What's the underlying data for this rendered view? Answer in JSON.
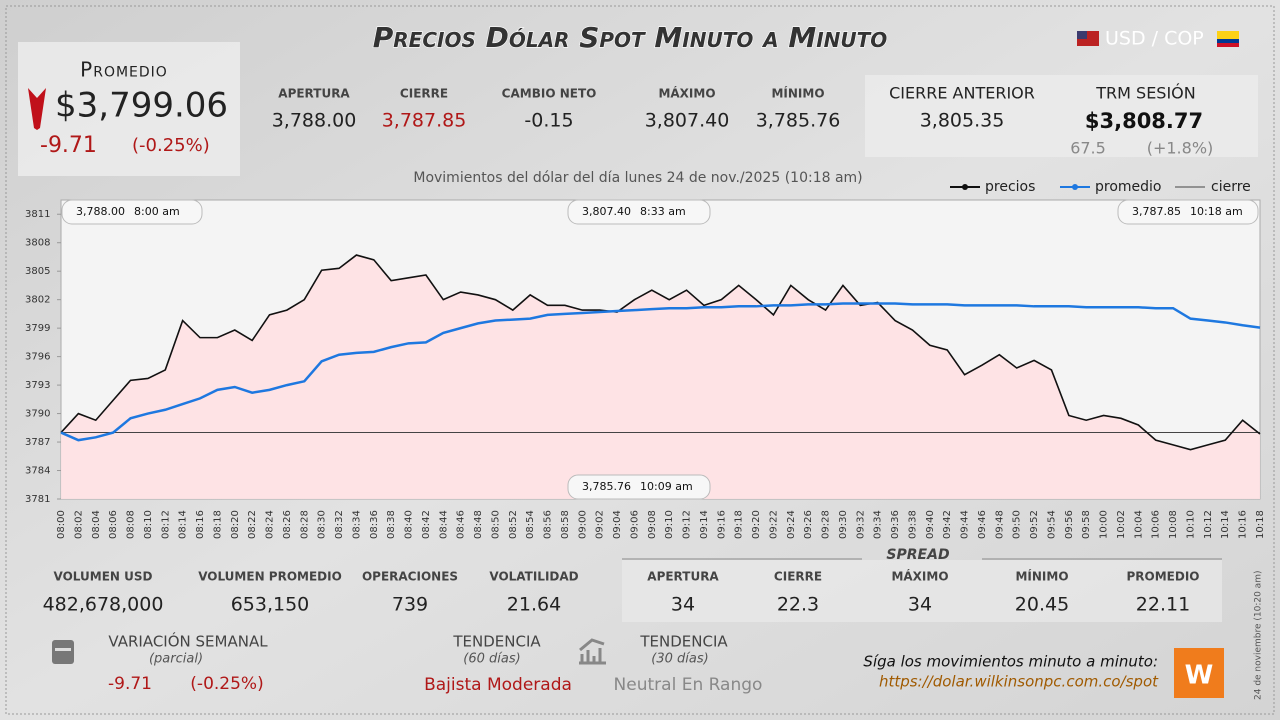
{
  "header": {
    "title": "Precios Dólar Spot Minuto a Minuto",
    "pair": "USD / COP"
  },
  "promedio": {
    "label": "Promedio",
    "value": "$3,799.06",
    "change": "-9.71",
    "change_pct": "(-0.25%)"
  },
  "stats": [
    {
      "label": "APERTURA",
      "value": "3,788.00"
    },
    {
      "label": "CIERRE",
      "value": "3,787.85"
    },
    {
      "label": "CAMBIO NETO",
      "value": "-0.15"
    },
    {
      "label": "MÁXIMO",
      "value": "3,807.40"
    },
    {
      "label": "MÍNIMO",
      "value": "3,785.76"
    }
  ],
  "previous": {
    "label": "CIERRE ANTERIOR",
    "value": "3,805.35"
  },
  "trm": {
    "label": "TRM SESIÓN",
    "value": "$3,808.77",
    "diff": "67.5",
    "diff_pct": "(+1.8%)"
  },
  "chart_data": {
    "type": "line",
    "subtitle": "Movimientos del dólar del día lunes 24 de nov./2025 (10:18 am)",
    "categories": [
      "08:00",
      "08:02",
      "08:04",
      "08:06",
      "08:08",
      "08:10",
      "08:12",
      "08:14",
      "08:16",
      "08:18",
      "08:20",
      "08:22",
      "08:24",
      "08:26",
      "08:28",
      "08:30",
      "08:32",
      "08:34",
      "08:36",
      "08:38",
      "08:40",
      "08:42",
      "08:44",
      "08:46",
      "08:48",
      "08:50",
      "08:52",
      "08:54",
      "08:56",
      "08:58",
      "09:00",
      "09:02",
      "09:04",
      "09:06",
      "09:08",
      "09:10",
      "09:12",
      "09:14",
      "09:16",
      "09:18",
      "09:20",
      "09:22",
      "09:24",
      "09:26",
      "09:28",
      "09:30",
      "09:32",
      "09:34",
      "09:36",
      "09:38",
      "09:40",
      "09:42",
      "09:44",
      "09:46",
      "09:48",
      "09:50",
      "09:52",
      "09:54",
      "09:56",
      "09:58",
      "10:00",
      "10:02",
      "10:04",
      "10:06",
      "10:08",
      "10:10",
      "10:12",
      "10:14",
      "10:16",
      "10:18"
    ],
    "series": [
      {
        "name": "precios",
        "color": "#111111",
        "values": [
          3788.0,
          3790.0,
          3789.3,
          3791.4,
          3793.5,
          3793.7,
          3794.6,
          3799.8,
          3798.0,
          3798.0,
          3798.8,
          3797.7,
          3800.4,
          3800.9,
          3802.0,
          3805.1,
          3805.3,
          3806.7,
          3806.2,
          3804.0,
          3804.3,
          3804.6,
          3802.0,
          3802.8,
          3802.5,
          3802.0,
          3800.9,
          3802.5,
          3801.4,
          3801.4,
          3800.9,
          3800.9,
          3800.7,
          3802.0,
          3803.0,
          3802.0,
          3803.0,
          3801.4,
          3802.0,
          3803.5,
          3802.0,
          3800.4,
          3803.5,
          3802.0,
          3800.9,
          3803.5,
          3801.4,
          3801.7,
          3799.8,
          3798.8,
          3797.2,
          3796.7,
          3794.1,
          3795.1,
          3796.2,
          3794.8,
          3795.6,
          3794.6,
          3789.8,
          3789.3,
          3789.8,
          3789.5,
          3788.8,
          3787.2,
          3786.7,
          3786.2,
          3786.7,
          3787.2,
          3789.3,
          3787.85
        ]
      },
      {
        "name": "promedio",
        "color": "#1e78e0",
        "values": [
          3788.0,
          3787.2,
          3787.5,
          3788.0,
          3789.5,
          3790.0,
          3790.4,
          3791.0,
          3791.6,
          3792.5,
          3792.8,
          3792.2,
          3792.5,
          3793.0,
          3793.4,
          3795.5,
          3796.2,
          3796.4,
          3796.5,
          3797.0,
          3797.4,
          3797.5,
          3798.5,
          3799.0,
          3799.5,
          3799.8,
          3799.9,
          3800.0,
          3800.4,
          3800.5,
          3800.6,
          3800.7,
          3800.8,
          3800.9,
          3801.0,
          3801.1,
          3801.1,
          3801.2,
          3801.2,
          3801.3,
          3801.3,
          3801.4,
          3801.4,
          3801.5,
          3801.5,
          3801.6,
          3801.6,
          3801.6,
          3801.6,
          3801.5,
          3801.5,
          3801.5,
          3801.4,
          3801.4,
          3801.4,
          3801.4,
          3801.3,
          3801.3,
          3801.3,
          3801.2,
          3801.2,
          3801.2,
          3801.2,
          3801.1,
          3801.1,
          3800.0,
          3799.8,
          3799.6,
          3799.3,
          3799.06
        ]
      }
    ],
    "reference_line": {
      "name": "cierre",
      "color": "#444444",
      "value": 3788.0
    },
    "ylim": [
      3781,
      3812.5
    ],
    "yticks": [
      3781,
      3784,
      3787,
      3790,
      3793,
      3796,
      3799,
      3802,
      3805,
      3808,
      3811
    ],
    "annotations": [
      {
        "value": "3,788.00",
        "time": "8:00 am"
      },
      {
        "value": "3,807.40",
        "time": "8:33 am"
      },
      {
        "value": "3,787.85",
        "time": "10:18 am"
      },
      {
        "value": "3,785.76",
        "time": "10:09 am"
      }
    ]
  },
  "volume_stats": [
    {
      "label": "VOLUMEN USD",
      "value": "482,678,000"
    },
    {
      "label": "VOLUMEN PROMEDIO",
      "value": "653,150"
    },
    {
      "label": "OPERACIONES",
      "value": "739"
    },
    {
      "label": "VOLATILIDAD",
      "value": "21.64"
    }
  ],
  "spread": {
    "title": "SPREAD",
    "items": [
      {
        "label": "APERTURA",
        "value": "34"
      },
      {
        "label": "CIERRE",
        "value": "22.3"
      },
      {
        "label": "MÁXIMO",
        "value": "34"
      },
      {
        "label": "MÍNIMO",
        "value": "20.45"
      },
      {
        "label": "PROMEDIO",
        "value": "22.11"
      }
    ]
  },
  "weekly": {
    "label": "VARIACIÓN SEMANAL",
    "note": "(parcial)",
    "change": "-9.71",
    "change_pct": "(-0.25%)"
  },
  "trend60": {
    "label": "TENDENCIA",
    "note": "(60 días)",
    "value": "Bajista Moderada"
  },
  "trend30": {
    "label": "TENDENCIA",
    "note": "(30 días)",
    "value": "Neutral En Rango"
  },
  "footer": {
    "cta": "Síga los movimientos minuto a minuto:",
    "url": "https://dolar.wilkinsonpc.com.co/spot"
  },
  "side_note": "24 de noviembre (10:20 am)"
}
